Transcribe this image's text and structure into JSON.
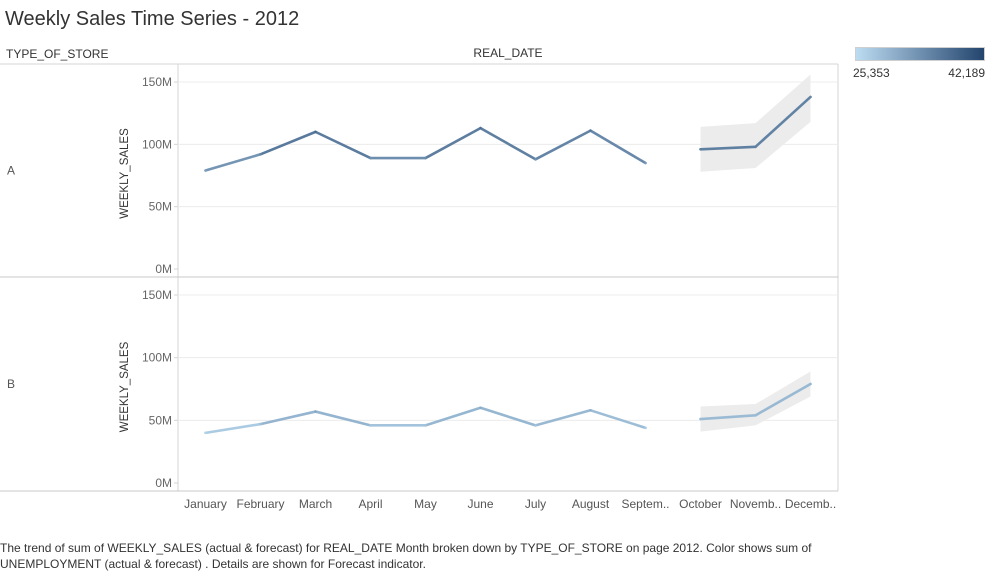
{
  "title": "Weekly Sales Time Series - 2012",
  "headers": {
    "row_field": "TYPE_OF_STORE",
    "col_field": "REAL_DATE"
  },
  "legend": {
    "min_label": "25,353",
    "max_label": "42,189",
    "color_low": "#bcdcf2",
    "color_high": "#23446d",
    "forecast_band_color": "#ececec"
  },
  "caption": "The trend of sum of WEEKLY_SALES (actual & forecast)  for REAL_DATE Month broken down by TYPE_OF_STORE on page 2012.  Color shows sum of UNEMPLOYMENT (actual & forecast) .  Details are shown for Forecast indicator.",
  "chart_data": {
    "type": "line",
    "title": "Weekly Sales Time Series - 2012",
    "xlabel": "REAL_DATE",
    "ylabel": "WEEKLY_SALES",
    "ylim": [
      0,
      150000000
    ],
    "yticks": [
      "0M",
      "50M",
      "100M",
      "150M"
    ],
    "yticks_values": [
      0,
      50000000,
      100000000,
      150000000
    ],
    "grid": true,
    "categories": [
      "January",
      "February",
      "March",
      "April",
      "May",
      "June",
      "July",
      "August",
      "Septem..",
      "October",
      "Novemb..",
      "Decemb.."
    ],
    "forecast_start_index": 9,
    "panels": [
      {
        "name": "A",
        "actual": [
          79000000,
          92000000,
          110000000,
          89000000,
          89000000,
          113000000,
          88000000,
          111000000,
          85000000
        ],
        "forecast": [
          96000000,
          98000000,
          138000000
        ],
        "forecast_low": [
          78000000,
          81000000,
          118000000
        ],
        "forecast_high": [
          114000000,
          117000000,
          156000000
        ],
        "color_values": [
          32000,
          34500,
          38000,
          34000,
          34000,
          37500,
          33500,
          36500,
          32500,
          35500,
          35500,
          35000
        ]
      },
      {
        "name": "B",
        "actual": [
          40000000,
          47000000,
          57000000,
          46000000,
          46000000,
          60000000,
          46000000,
          58000000,
          44000000
        ],
        "forecast": [
          51000000,
          54000000,
          79000000
        ],
        "forecast_low": [
          41000000,
          46000000,
          69000000
        ],
        "forecast_high": [
          61000000,
          63000000,
          89000000
        ],
        "color_values": [
          26500,
          28000,
          31500,
          28000,
          28000,
          31000,
          28000,
          30500,
          27000,
          29000,
          29000,
          29500
        ]
      }
    ]
  }
}
